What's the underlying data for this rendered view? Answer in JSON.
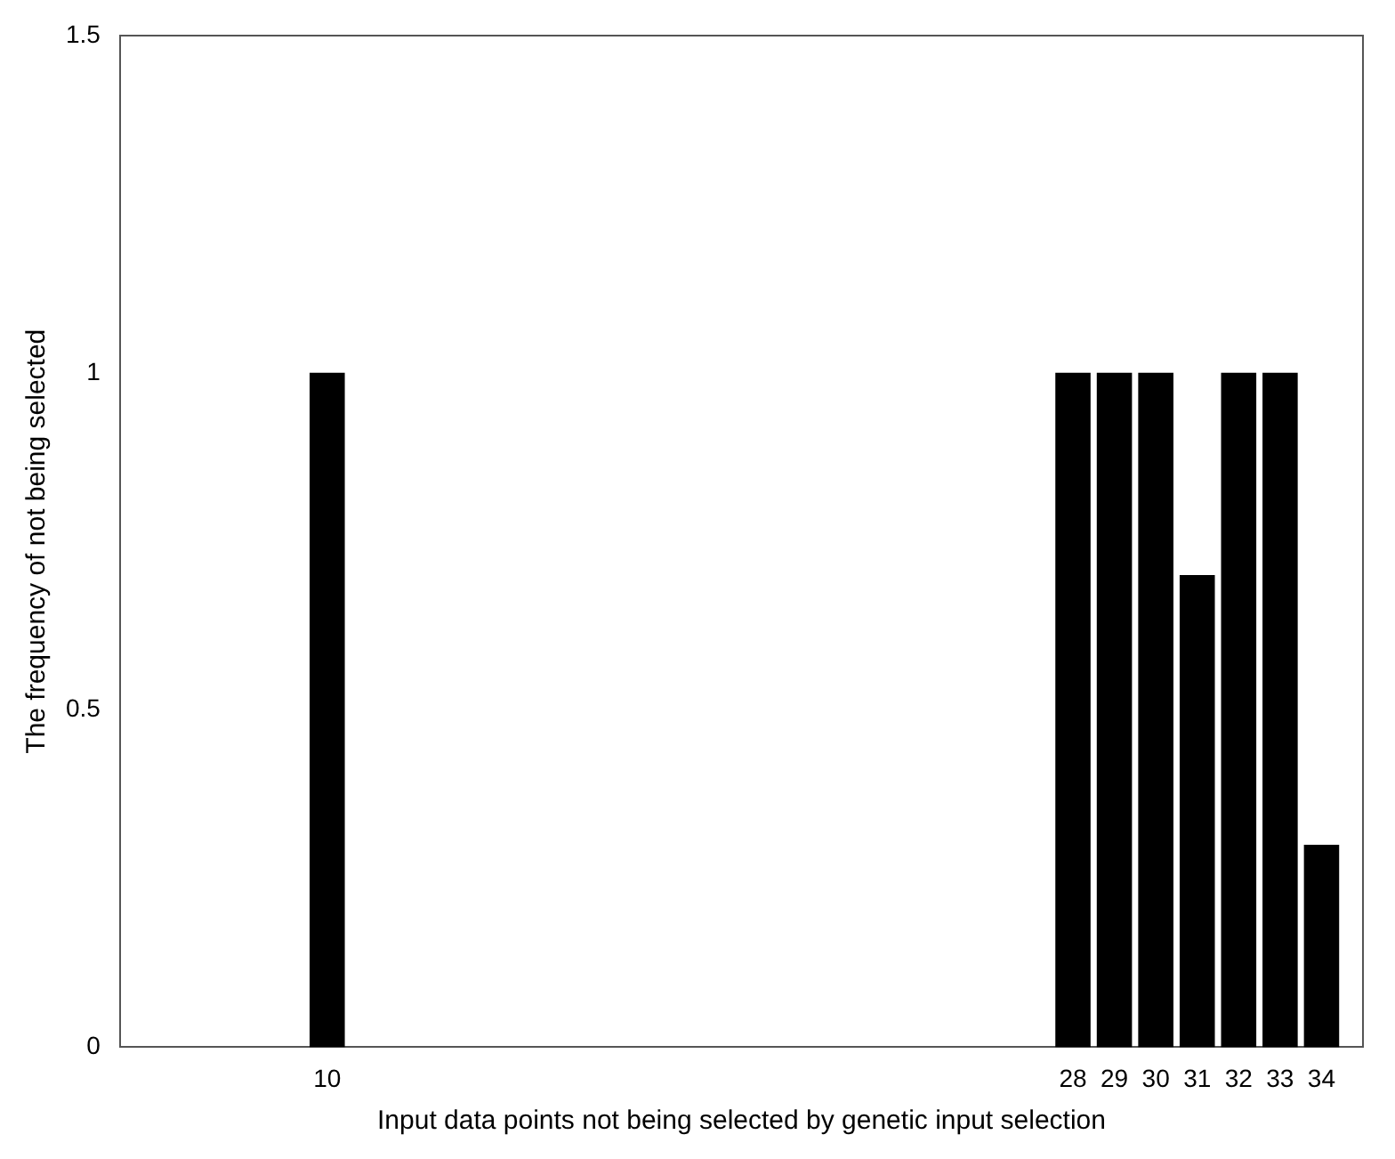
{
  "chart_data": {
    "type": "bar",
    "xlabel": "Input data points not being selected by genetic input selection",
    "ylabel": "The frequency of not being selected",
    "x": [
      10,
      28,
      29,
      30,
      31,
      32,
      33,
      34
    ],
    "values": [
      1,
      1,
      1,
      1,
      0.7,
      1,
      1,
      0.3
    ],
    "color": "#000000",
    "xlim": [
      5,
      35
    ],
    "xticks": [
      10,
      28,
      29,
      30,
      31,
      32,
      33,
      34
    ],
    "ylim": [
      0,
      1.5
    ],
    "yticks": [
      0,
      0.5,
      1,
      1.5
    ],
    "grid": false,
    "legend": false
  }
}
